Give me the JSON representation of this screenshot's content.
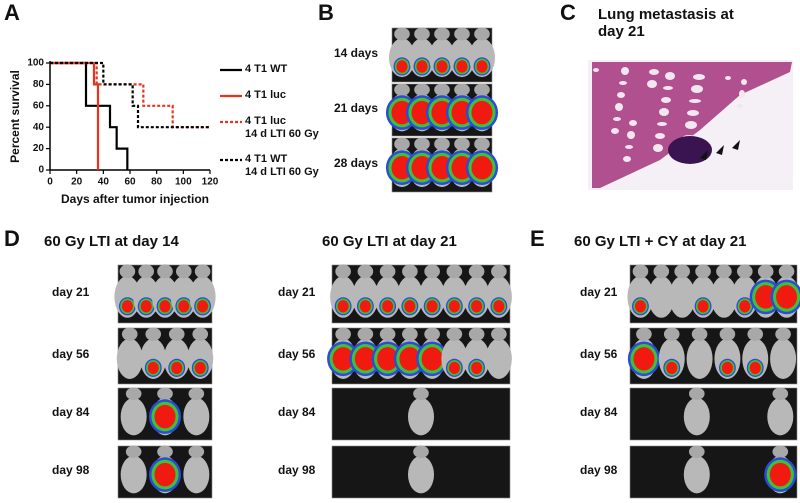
{
  "chart_data": {
    "type": "line",
    "ylabel": "Percent survival",
    "xlabel": "Days after tumor injection",
    "xlim": [
      0,
      120
    ],
    "xticks": [
      0,
      20,
      40,
      60,
      80,
      100,
      120
    ],
    "ylim": [
      0,
      100
    ],
    "yticks": [
      0,
      20,
      40,
      60,
      80,
      100
    ],
    "step": true,
    "series": [
      {
        "name": "4 T1 WT",
        "color": "#000000",
        "dashed": false,
        "x": [
          0,
          27,
          45,
          50,
          58
        ],
        "values": [
          100,
          60,
          40,
          20,
          0
        ]
      },
      {
        "name": "4 T1 luc",
        "color": "#e8321e",
        "dashed": false,
        "x": [
          0,
          33,
          36
        ],
        "values": [
          100,
          80,
          0
        ]
      },
      {
        "name": "4 T1 luc\n14 d LTI 60 Gy",
        "color": "#e8321e",
        "dashed": true,
        "x": [
          0,
          35,
          70,
          92,
          120
        ],
        "values": [
          100,
          80,
          60,
          40,
          40
        ]
      },
      {
        "name": "4 T1 WT\n14 d LTI 60 Gy",
        "color": "#000000",
        "dashed": true,
        "x": [
          0,
          40,
          62,
          66,
          120
        ],
        "values": [
          100,
          80,
          60,
          40,
          40
        ]
      }
    ]
  },
  "figure": {
    "panel_a": "A",
    "panel_b": {
      "label": "B",
      "rows": [
        "14 days",
        "21 days",
        "28 days"
      ]
    },
    "panel_c": {
      "label": "C",
      "title": "Lung metastasis at\nday 21"
    },
    "panel_d": {
      "label": "D",
      "left_title": "60 Gy LTI at day 14",
      "left_rows": [
        "day 21",
        "day 56",
        "day 84",
        "day 98"
      ],
      "right_title": "60 Gy LTI at day 21",
      "right_rows": [
        "day 21",
        "day 56",
        "day 84",
        "day 98"
      ]
    },
    "panel_e": {
      "label": "E",
      "title": "60 Gy LTI + CY at day 21",
      "rows": [
        "day 21",
        "day 56",
        "day 84",
        "day 98"
      ]
    }
  }
}
